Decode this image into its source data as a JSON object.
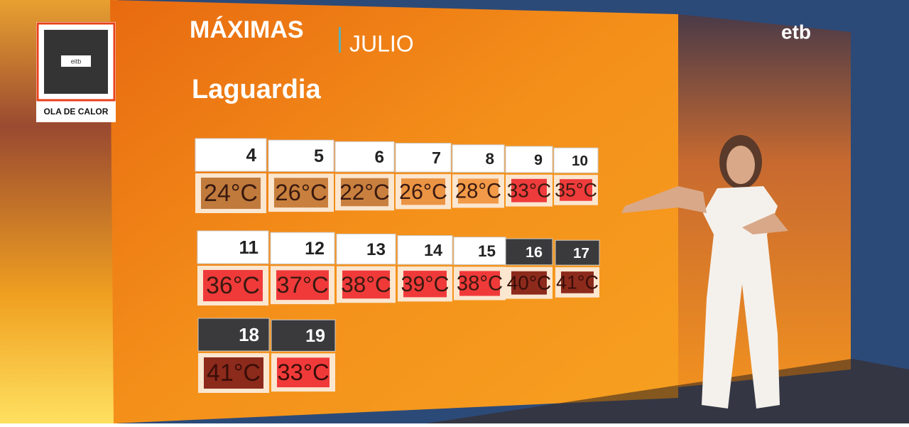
{
  "header": {
    "title": "MÁXIMAS",
    "month": "JULIO",
    "place": "Laguardia"
  },
  "badge": {
    "label": "OLA DE CALOR",
    "qr_text": "eitb"
  },
  "logo": "etb",
  "rows": [
    [
      {
        "day": 4,
        "temp": "24°C",
        "temp_color": "#c07a3c",
        "header_color": "#ffffff"
      },
      {
        "day": 5,
        "temp": "26°C",
        "temp_color": "#c9803e",
        "header_color": "#ffffff"
      },
      {
        "day": 6,
        "temp": "22°C",
        "temp_color": "#c9803e",
        "header_color": "#ffffff"
      },
      {
        "day": 7,
        "temp": "26°C",
        "temp_color": "#eb9444",
        "header_color": "#ffffff"
      },
      {
        "day": 8,
        "temp": "28°C",
        "temp_color": "#f29a48",
        "header_color": "#ffffff"
      },
      {
        "day": 9,
        "temp": "33°C",
        "temp_color": "#ee3b3b",
        "header_color": "#ffffff"
      },
      {
        "day": 10,
        "temp": "35°C",
        "temp_color": "#ee3b3b",
        "header_color": "#ffffff"
      }
    ],
    [
      {
        "day": 11,
        "temp": "36°C",
        "temp_color": "#f03a3a",
        "header_color": "#ffffff"
      },
      {
        "day": 12,
        "temp": "37°C",
        "temp_color": "#f03a3a",
        "header_color": "#ffffff"
      },
      {
        "day": 13,
        "temp": "38°C",
        "temp_color": "#f03a3a",
        "header_color": "#ffffff"
      },
      {
        "day": 14,
        "temp": "39°C",
        "temp_color": "#f03a3a",
        "header_color": "#ffffff"
      },
      {
        "day": 15,
        "temp": "38°C",
        "temp_color": "#f03a3a",
        "header_color": "#ffffff"
      },
      {
        "day": 16,
        "temp": "40°C",
        "temp_color": "#8c2a1c",
        "header_color": "#3a3a3c"
      },
      {
        "day": 17,
        "temp": "41°C",
        "temp_color": "#8c2a1c",
        "header_color": "#3a3a3c"
      }
    ],
    [
      {
        "day": 18,
        "temp": "41°C",
        "temp_color": "#8c2a1c",
        "header_color": "#3a3a3c"
      },
      {
        "day": 19,
        "temp": "33°C",
        "temp_color": "#f03a3a",
        "header_color": "#3a3a3c"
      }
    ]
  ]
}
